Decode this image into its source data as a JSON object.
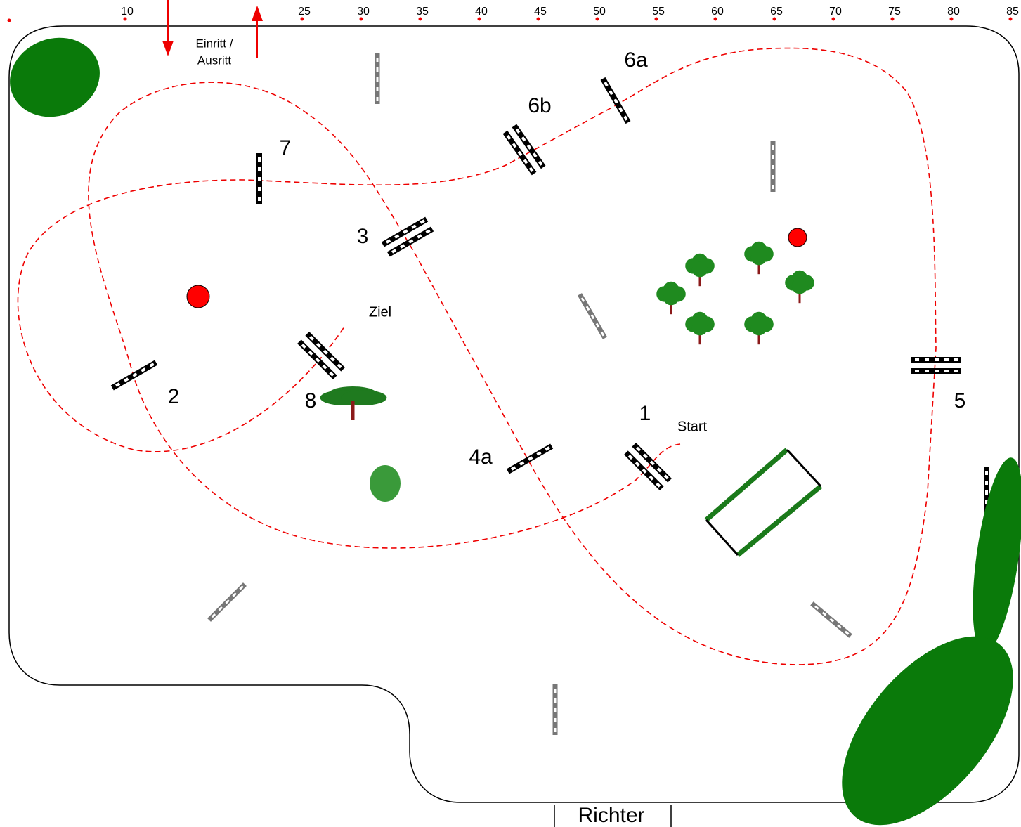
{
  "scale": {
    "labels": [
      10,
      25,
      30,
      35,
      40,
      45,
      50,
      55,
      60,
      65,
      70,
      75,
      80,
      85
    ]
  },
  "entry": {
    "lines": [
      "Einritt /",
      "Ausritt"
    ]
  },
  "obstacles": [
    "1",
    "2",
    "3",
    "4a",
    "5",
    "6a",
    "6b",
    "7",
    "8"
  ],
  "start": "Start",
  "finish": "Ziel",
  "judge": "Richter"
}
